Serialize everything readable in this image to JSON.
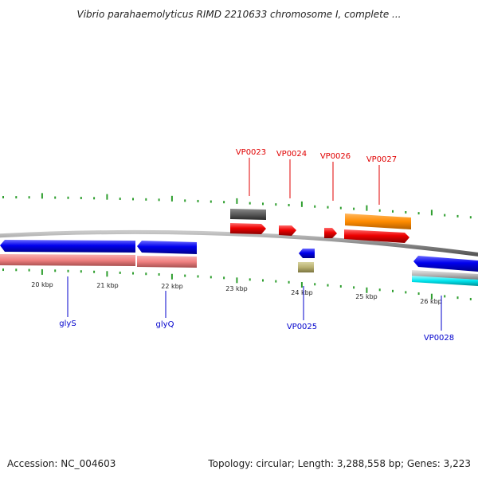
{
  "title": "Vibrio parahaemolyticus RIMD 2210633 chromosome I, complete ...",
  "footer": {
    "accession": "Accession: NC_004603",
    "topology": "Topology: circular; Length: 3,288,558 bp; Genes: 3,223"
  },
  "colors": {
    "tick": "#2e9e2e",
    "backbone": "#8c8c8c",
    "label_top": "#e00000",
    "label_bottom": "#0000cc"
  },
  "kbp_labels": [
    "20 kbp",
    "21 kbp",
    "22 kbp",
    "23 kbp",
    "24 kbp",
    "25 kbp",
    "26 kbp"
  ],
  "genes_top": [
    {
      "label": "VP0023",
      "color": "#e00000"
    },
    {
      "label": "VP0024",
      "color": "#e00000"
    },
    {
      "label": "VP0026",
      "color": "#e00000"
    },
    {
      "label": "VP0027",
      "color": "#e00000"
    }
  ],
  "genes_bottom": [
    {
      "label": "glyS",
      "color": "#0000cc"
    },
    {
      "label": "glyQ",
      "color": "#0000cc"
    },
    {
      "label": "VP0025",
      "color": "#0000cc"
    },
    {
      "label": "VP0028",
      "color": "#0000cc"
    }
  ],
  "feature_colors": {
    "gene_forward": "#ee0000",
    "gene_reverse": "#0000ee",
    "rrna_like": "#f08080",
    "grey_block": "#5a5a5a",
    "orange_block": "#ff8c00",
    "khaki_block": "#b8b070",
    "cyan_block": "#00e5ee",
    "silver_block": "#b8b8b8"
  }
}
